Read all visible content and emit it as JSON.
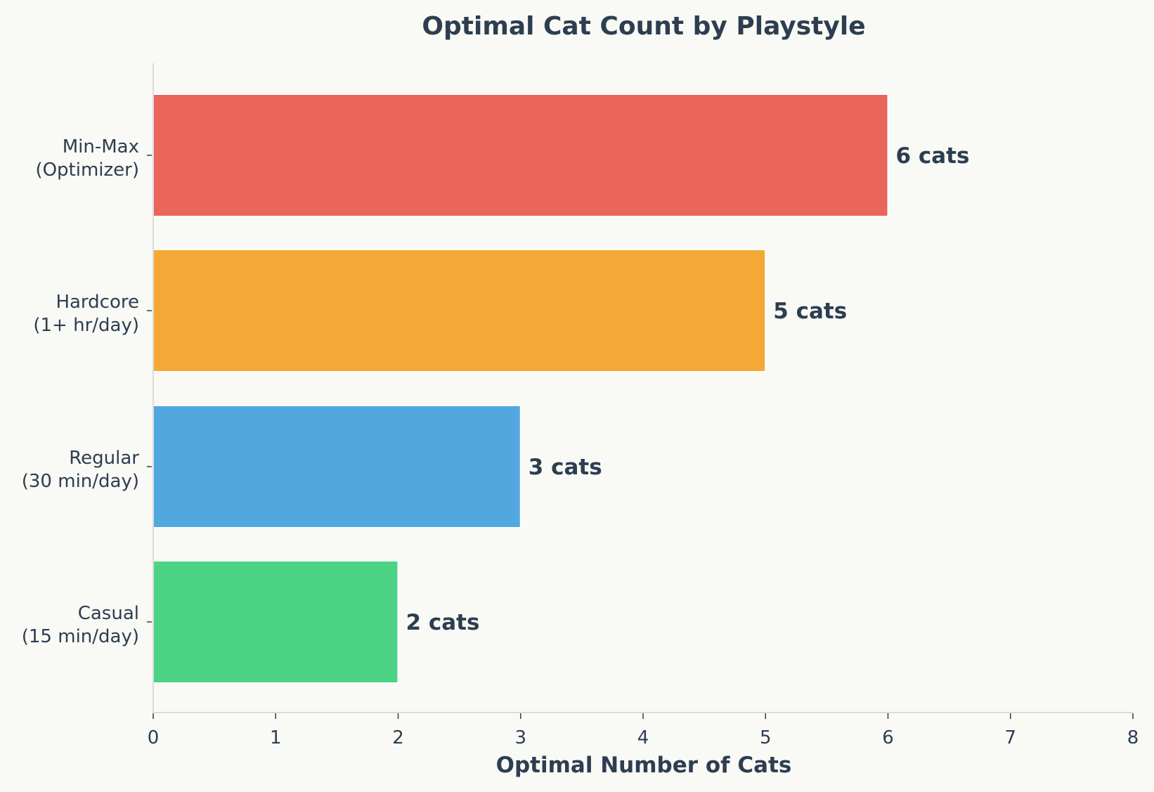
{
  "chart_data": {
    "type": "bar",
    "orientation": "horizontal",
    "title": "Optimal Cat Count by Playstyle",
    "xlabel": "Optimal Number of Cats",
    "ylabel": "",
    "xlim": [
      0,
      8
    ],
    "xticks": [
      "0",
      "1",
      "2",
      "3",
      "4",
      "5",
      "6",
      "7",
      "8"
    ],
    "categories": [
      {
        "line1": "Casual",
        "line2": "(15 min/day)"
      },
      {
        "line1": "Regular",
        "line2": "(30 min/day)"
      },
      {
        "line1": "Hardcore",
        "line2": "(1+ hr/day)"
      },
      {
        "line1": "Min-Max",
        "line2": "(Optimizer)"
      }
    ],
    "values": [
      2,
      3,
      5,
      6
    ],
    "data_labels": [
      "2 cats",
      "3 cats",
      "5 cats",
      "6 cats"
    ],
    "colors": [
      "#4cd386",
      "#52a7df",
      "#f4a936",
      "#ea655a"
    ],
    "grid": false,
    "legend": "none"
  },
  "style": {
    "text_color": "#2c3e50",
    "tick_color": "#2c3e50",
    "spine_color": "#dcdcdc",
    "background": "#f9f9f5"
  }
}
